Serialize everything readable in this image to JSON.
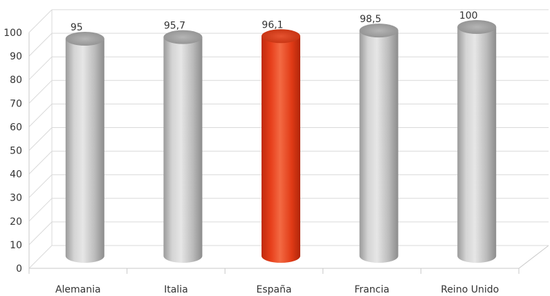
{
  "chart_data": {
    "type": "bar",
    "style": "3d-cylinder",
    "title": "",
    "xlabel": "",
    "ylabel": "",
    "categories": [
      "Alemania",
      "Italia",
      "España",
      "Francia",
      "Reino Unido"
    ],
    "values": [
      95,
      95.7,
      96.1,
      98.5,
      100
    ],
    "data_labels": [
      "95",
      "95,7",
      "96,1",
      "98,5",
      "100"
    ],
    "highlight_index": 2,
    "colors": {
      "default": "#bdbdbd",
      "highlight": "#e8401c",
      "grid": "#d9d9d9"
    },
    "ylim": [
      0,
      100
    ],
    "yticks": [
      0,
      10,
      20,
      30,
      40,
      50,
      60,
      70,
      80,
      90,
      100
    ],
    "grid": true,
    "legend": "none"
  }
}
